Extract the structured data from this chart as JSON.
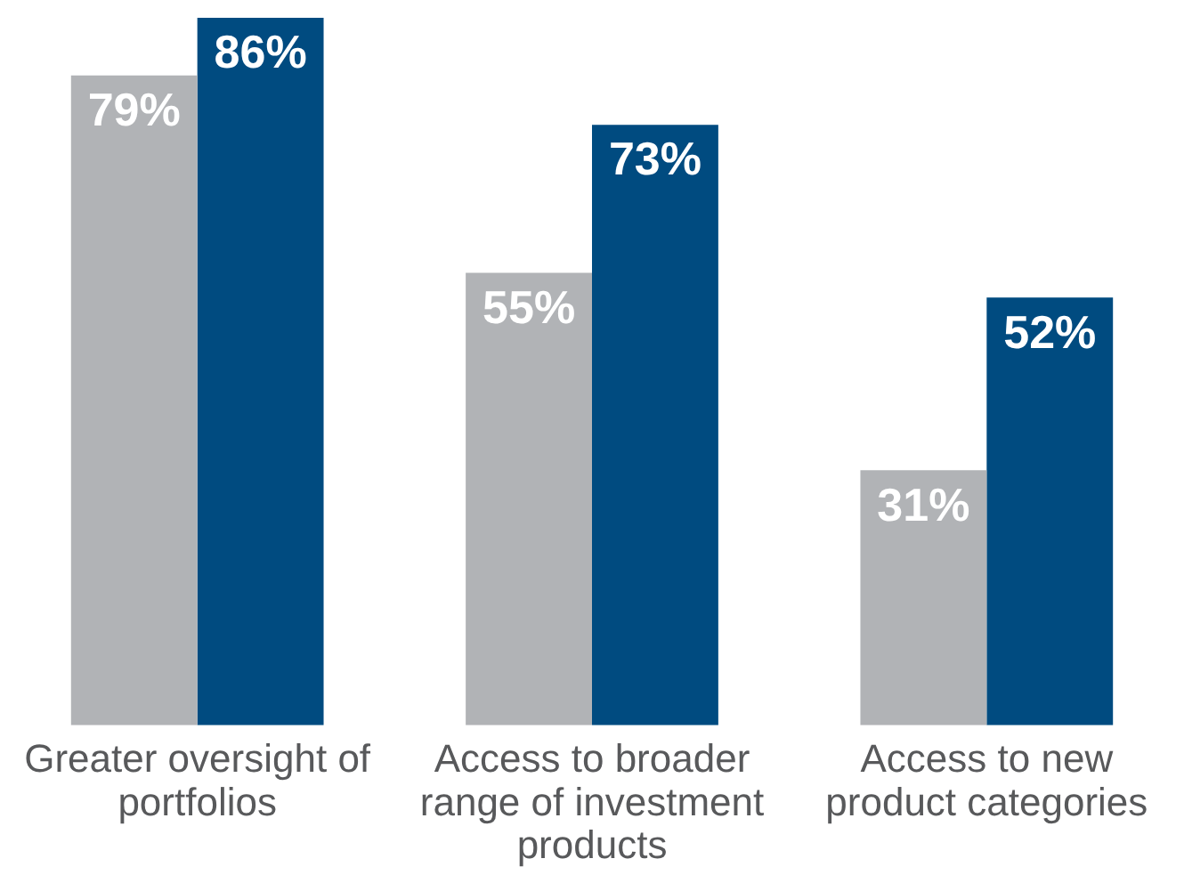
{
  "chart_data": {
    "type": "bar",
    "categories": [
      "Greater oversight of portfolios",
      "Access to broader range of investment products",
      "Access to new product categories"
    ],
    "series": [
      {
        "color": "#b1b3b6",
        "values": [
          79,
          55,
          31
        ],
        "value_labels": [
          "79%",
          "55%",
          "31%"
        ]
      },
      {
        "color": "#004b80",
        "values": [
          86,
          73,
          52
        ],
        "value_labels": [
          "86%",
          "73%",
          "52%"
        ]
      }
    ],
    "ylim": [
      0,
      86
    ],
    "tick_labels": "x",
    "grid": false,
    "legend": false
  }
}
